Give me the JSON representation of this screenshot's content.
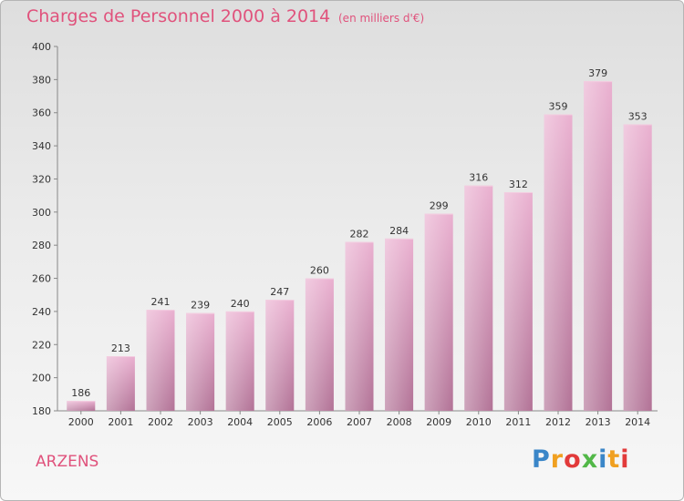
{
  "title": "Charges de Personnel 2000 à 2014",
  "subtitle": "(en milliers d'€)",
  "commune": "ARZENS",
  "logo": {
    "letters": [
      "P",
      "r",
      "o",
      "x",
      "i",
      "t",
      "i"
    ],
    "colors": [
      "#3a86c8",
      "#f0a020",
      "#e23a3a",
      "#52b848",
      "#3a86c8",
      "#f0a020",
      "#e23a3a"
    ]
  },
  "chart_data": {
    "type": "bar",
    "title": "Charges de Personnel 2000 à 2014",
    "subtitle": "(en milliers d'€)",
    "categories": [
      "2000",
      "2001",
      "2002",
      "2003",
      "2004",
      "2005",
      "2006",
      "2007",
      "2008",
      "2009",
      "2010",
      "2011",
      "2012",
      "2013",
      "2014"
    ],
    "values": [
      186,
      213,
      241,
      239,
      240,
      247,
      260,
      282,
      284,
      299,
      316,
      312,
      359,
      379,
      353
    ],
    "ylim": [
      180,
      400
    ],
    "yticks": [
      180,
      200,
      220,
      240,
      260,
      280,
      300,
      320,
      340,
      360,
      380,
      400
    ],
    "xlabel": "",
    "ylabel": "",
    "grid": false,
    "bar_color": "#d88ab2"
  }
}
